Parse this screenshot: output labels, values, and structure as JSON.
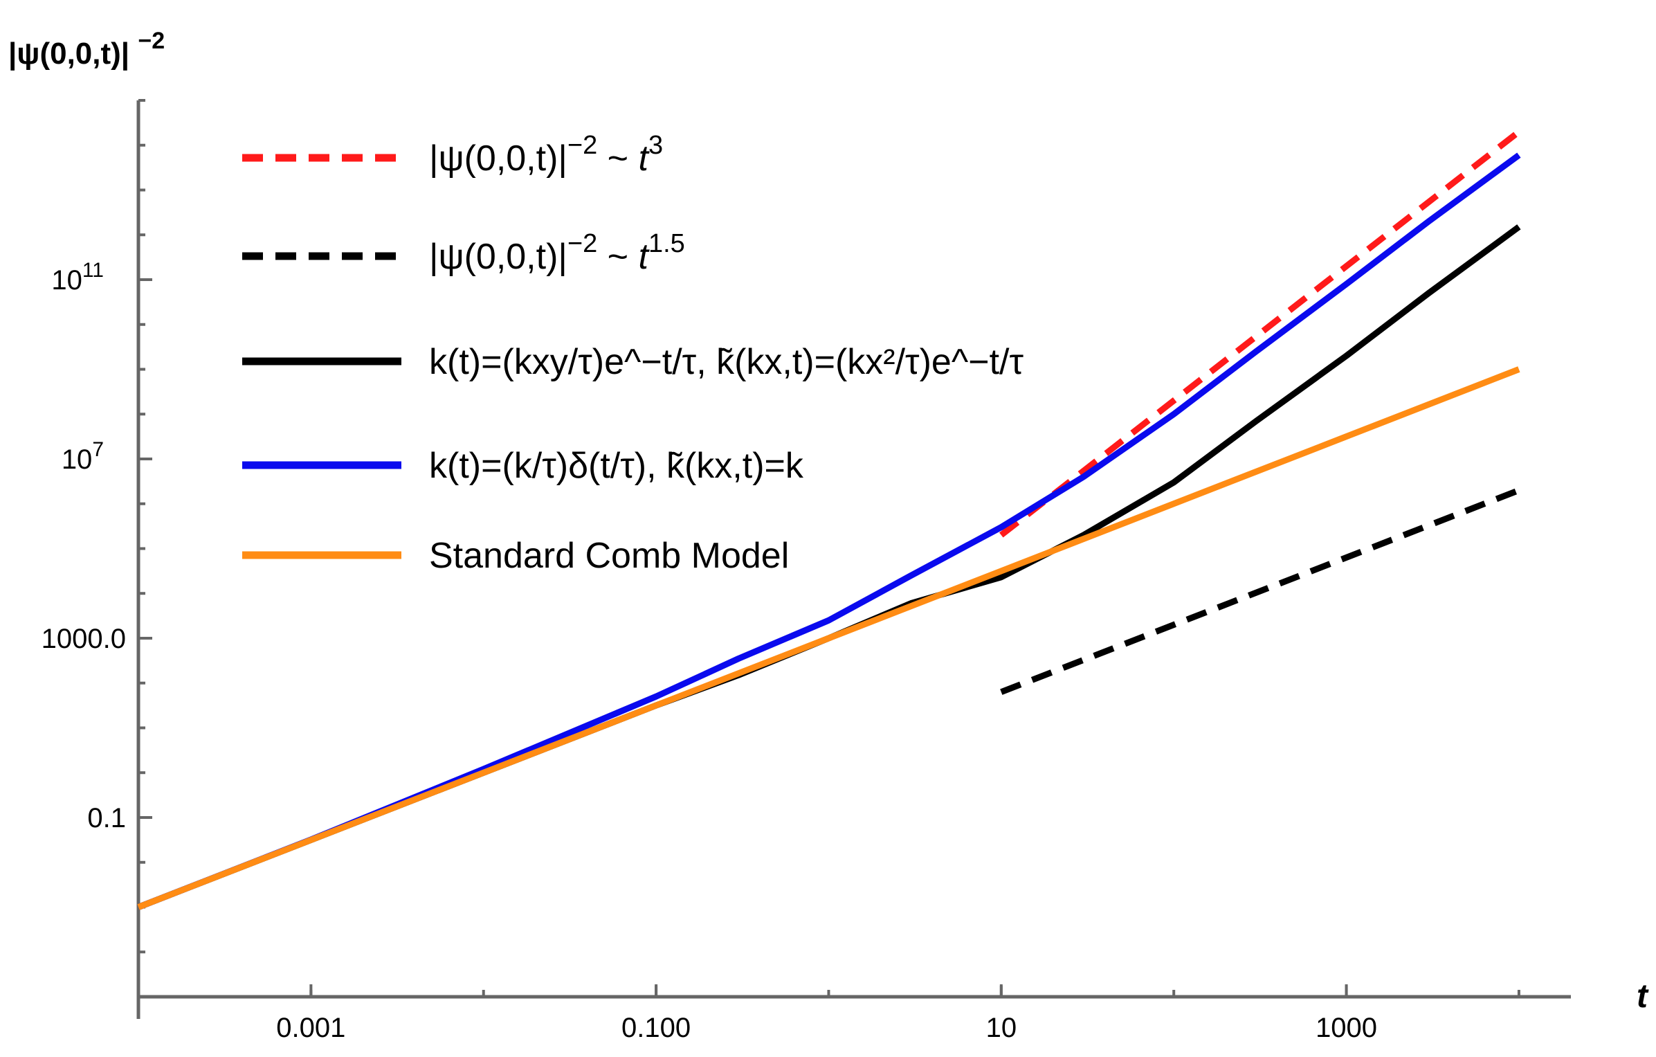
{
  "chart_data": {
    "type": "line",
    "title": "",
    "xlabel": "t",
    "ylabel": "|ψ(0,0,t)|",
    "ylabel_exp": "−2",
    "x_scale": "log",
    "y_scale": "log",
    "xlim": [
      0.0001,
      20000
    ],
    "ylim": [
      1e-05,
      1000000000000000
    ],
    "x_ticks": [
      {
        "value": 0.001,
        "label": "0.001"
      },
      {
        "value": 0.1,
        "label": "0.100"
      },
      {
        "value": 10,
        "label": "10"
      },
      {
        "value": 1000,
        "label": "1000"
      }
    ],
    "y_ticks": [
      {
        "value": 0.1,
        "label": "0.1"
      },
      {
        "value": 1000,
        "label": "1000.0"
      },
      {
        "value": 10000000,
        "label": "10",
        "exp": "7"
      },
      {
        "value": 100000000000,
        "label": "10",
        "exp": "11"
      }
    ],
    "legend_position": "top-left",
    "series": [
      {
        "name": "|ψ(0,0,t)|^−2 ~ t^3",
        "legend_main": "|ψ(0,0,t)|",
        "legend_sup1": "−2",
        "legend_mid": " ~ ",
        "legend_var": "t",
        "legend_sup2": "3",
        "color": "#ff1a1a",
        "style": "dashed",
        "x": [
          10,
          10000
        ],
        "y": [
          200000,
          200000000000000
        ]
      },
      {
        "name": "|ψ(0,0,t)|^−2 ~ t^1.5",
        "legend_main": "|ψ(0,0,t)|",
        "legend_sup1": "−2",
        "legend_mid": " ~ ",
        "legend_var": "t",
        "legend_sup2": "1.5",
        "color": "#000000",
        "style": "dashed",
        "x": [
          10,
          10000
        ],
        "y": [
          63,
          2000000
        ]
      },
      {
        "name": "k(t)=(kxy/τ)e^−t/τ, k̃(kx,t)=(kx²/τ)e^−t/τ",
        "legend_text": "k(t)=(kxy/τ)e^−t/τ,  k̃(kx,t)=(kx²/τ)e^−t/τ",
        "color": "#000000",
        "style": "solid",
        "x": [
          0.0001,
          0.001,
          0.01,
          0.1,
          0.3,
          1,
          3,
          10,
          30,
          100,
          300,
          1000,
          3000,
          10000
        ],
        "y": [
          0.001,
          0.0316,
          1.0,
          31.6,
          150,
          1000,
          6000,
          23000,
          200000,
          3000000,
          70000000,
          2000000000,
          50000000000,
          1500000000000
        ]
      },
      {
        "name": "k(t)=(k/τ)δ(t/τ), k̃(kx,t)=k",
        "legend_text": "k(t)=(k/τ)δ(t/τ),  k̃(kx,t)=k",
        "color": "#0a0aee",
        "style": "solid",
        "x": [
          0.0001,
          0.001,
          0.01,
          0.1,
          0.3,
          1,
          3,
          10,
          30,
          100,
          300,
          1000,
          3000,
          10000
        ],
        "y": [
          0.001,
          0.032,
          1.2,
          50,
          350,
          2500,
          25000,
          300000,
          4000000,
          100000000,
          2500000000,
          80000000000,
          2000000000000,
          60000000000000
        ]
      },
      {
        "name": "Standard Comb Model",
        "legend_text": "Standard Comb Model",
        "color": "#ff8c14",
        "style": "solid",
        "x": [
          0.0001,
          0.001,
          0.01,
          0.1,
          1,
          10,
          100,
          1000,
          10000
        ],
        "y": [
          0.001,
          0.0316,
          1.0,
          31.6,
          1000,
          31600,
          1000000,
          31600000,
          1000000000
        ]
      }
    ]
  }
}
